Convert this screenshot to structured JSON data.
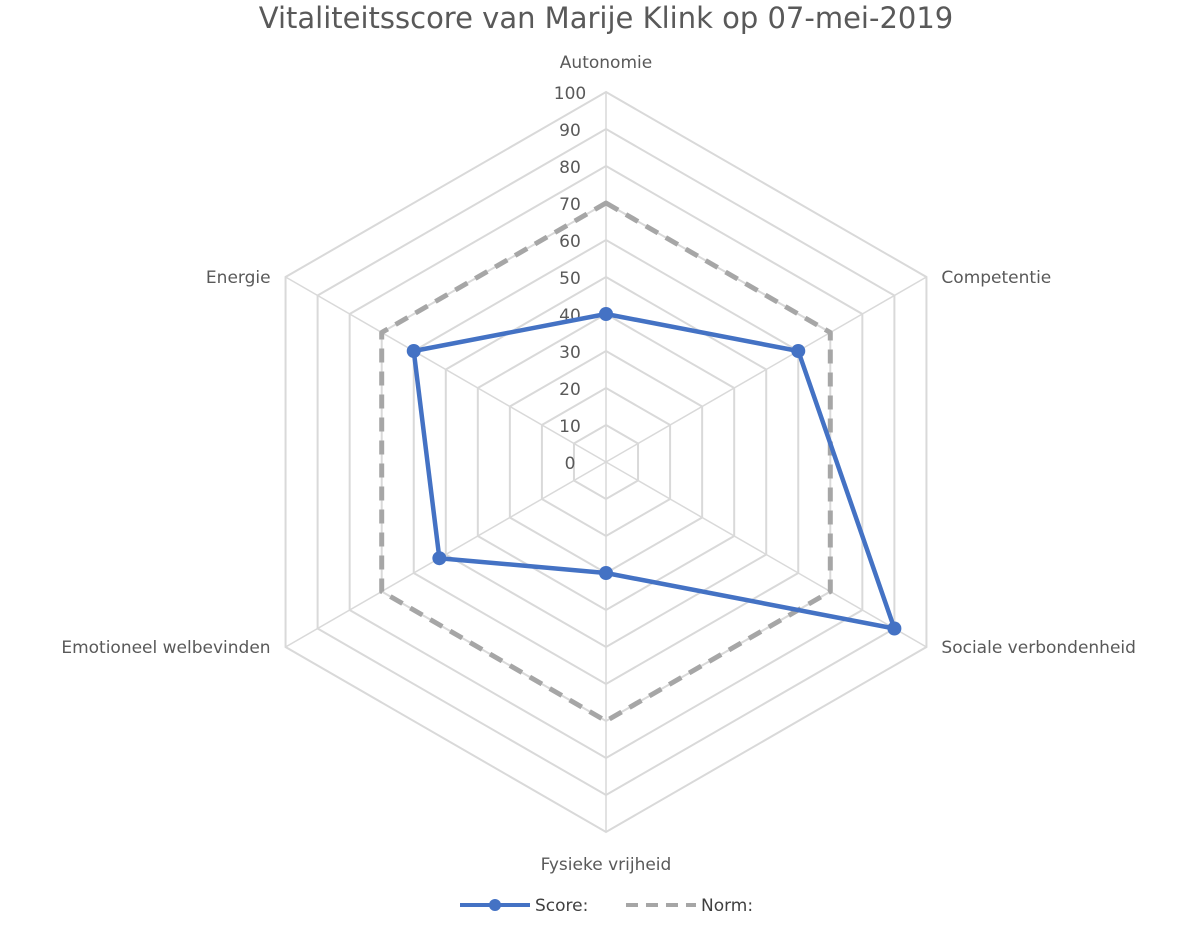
{
  "chart_data": {
    "type": "radar",
    "title": "Vitaliteitsscore van Marije Klink  op 07-mei-2019",
    "categories": [
      "Autonomie",
      "Competentie",
      "Sociale verbondenheid",
      "Fysieke vrijheid",
      "Emotioneel welbevinden",
      "Energie"
    ],
    "r_range": [
      0,
      100
    ],
    "r_ticks": [
      0,
      10,
      20,
      30,
      40,
      50,
      60,
      70,
      80,
      90,
      100
    ],
    "grid": true,
    "legend_position": "bottom",
    "series": [
      {
        "name": "Score:",
        "values": [
          40,
          60,
          90,
          30,
          52,
          60
        ],
        "color": "#4472c4",
        "style": "solid-markers"
      },
      {
        "name": "Norm:",
        "values": [
          70,
          70,
          70,
          70,
          70,
          70
        ],
        "color": "#a6a6a6",
        "style": "dashed"
      }
    ]
  }
}
